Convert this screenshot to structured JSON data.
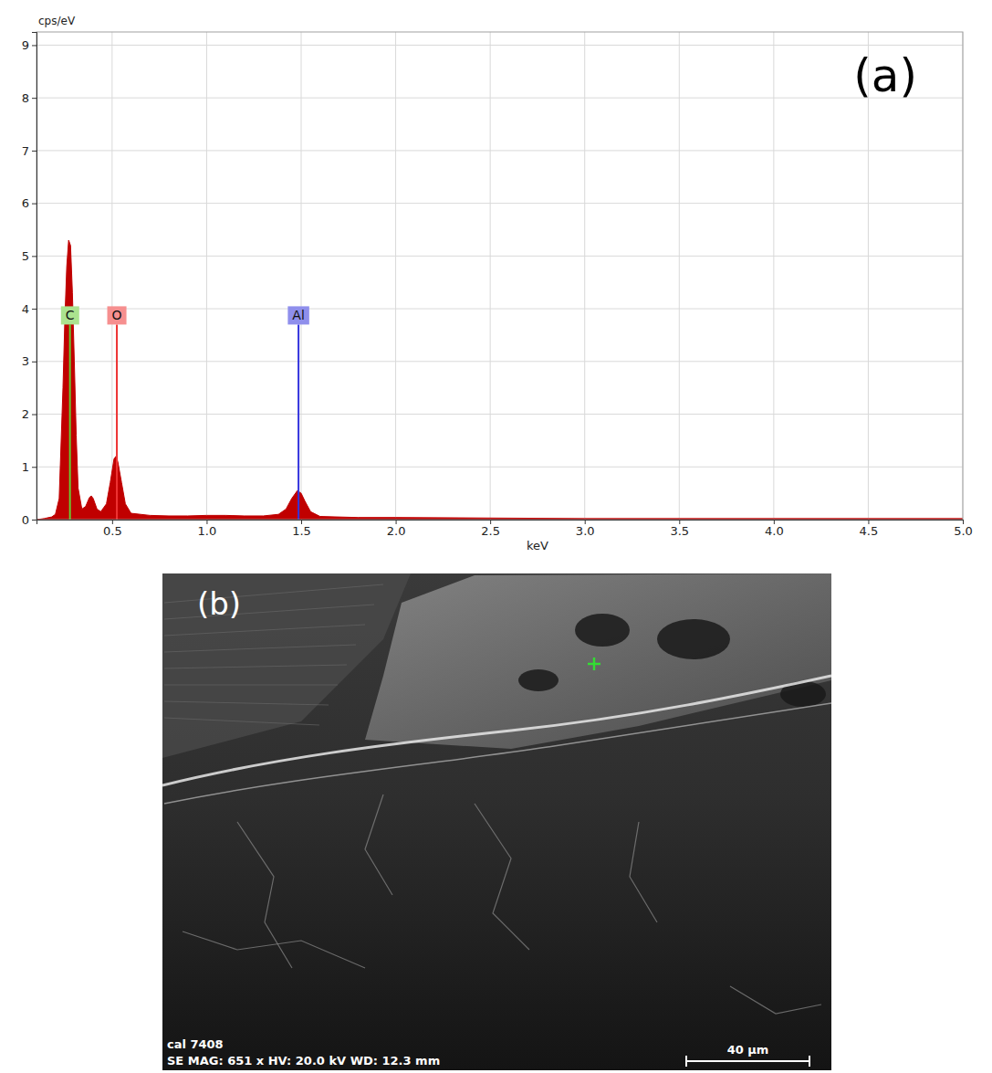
{
  "chart_data": {
    "type": "area",
    "panel_label": "(a)",
    "y_label": "cps/eV",
    "x_label": "keV",
    "x": [
      0.1,
      0.14,
      0.18,
      0.2,
      0.22,
      0.24,
      0.25,
      0.26,
      0.27,
      0.28,
      0.29,
      0.3,
      0.31,
      0.32,
      0.34,
      0.36,
      0.38,
      0.39,
      0.4,
      0.42,
      0.44,
      0.47,
      0.49,
      0.51,
      0.52,
      0.53,
      0.55,
      0.57,
      0.6,
      0.7,
      0.8,
      0.9,
      1.0,
      1.1,
      1.2,
      1.3,
      1.38,
      1.42,
      1.45,
      1.48,
      1.5,
      1.52,
      1.55,
      1.6,
      1.8,
      2.0,
      2.5,
      3.0,
      3.5,
      4.0,
      4.5,
      5.0
    ],
    "values": [
      0.0,
      0.02,
      0.05,
      0.1,
      0.4,
      2.5,
      3.8,
      4.8,
      5.3,
      5.2,
      4.3,
      3.0,
      1.6,
      0.6,
      0.2,
      0.25,
      0.42,
      0.45,
      0.4,
      0.2,
      0.15,
      0.3,
      0.7,
      1.15,
      1.2,
      1.1,
      0.7,
      0.3,
      0.12,
      0.08,
      0.07,
      0.07,
      0.08,
      0.08,
      0.07,
      0.07,
      0.1,
      0.2,
      0.4,
      0.55,
      0.5,
      0.35,
      0.15,
      0.06,
      0.04,
      0.04,
      0.03,
      0.02,
      0.02,
      0.02,
      0.02,
      0.02
    ],
    "color": "#c00000",
    "xlim": [
      0.1,
      5.0
    ],
    "xticks": [
      0.5,
      {
        "value": 1,
        "label": "1.0"
      },
      1.5,
      {
        "value": 2,
        "label": "2.0"
      },
      2.5,
      {
        "value": 3,
        "label": "3.0"
      },
      3.5,
      {
        "value": 4,
        "label": "4.0"
      },
      4.5,
      {
        "value": 5,
        "label": "5.0"
      }
    ],
    "ylim": [
      0,
      9.25
    ],
    "yticks": [
      0,
      1,
      2,
      3,
      4,
      5,
      6,
      7,
      8,
      9
    ],
    "grid": true,
    "annotations": [
      {
        "text": "C",
        "x": 0.277,
        "y": 3.7,
        "color": "#66cc33"
      },
      {
        "text": "O",
        "x": 0.525,
        "y": 3.7,
        "color": "#ee3333"
      },
      {
        "text": "Al",
        "x": 1.486,
        "y": 3.7,
        "color": "#3333dd"
      }
    ]
  },
  "image": {
    "panel_label": "(b)",
    "sample": "cal 7408",
    "info": "SE MAG: 651 x HV: 20.0 kV WD: 12.3 mm",
    "scale_bar": "40 µm"
  }
}
